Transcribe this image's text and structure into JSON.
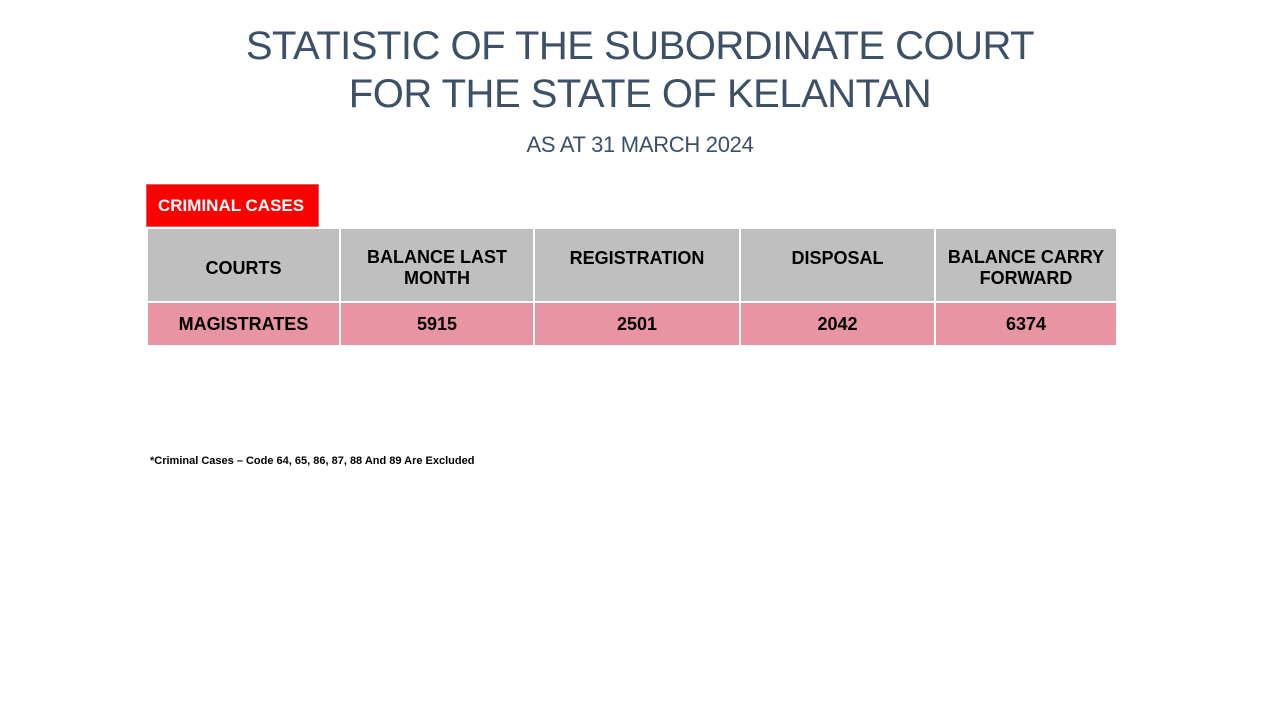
{
  "title": {
    "line1": "STATISTIC OF THE SUBORDINATE COURT",
    "line2": "FOR THE STATE OF KELANTAN",
    "subtitle": "AS AT 31 MARCH 2024"
  },
  "section_label": "CRIMINAL CASES",
  "table": {
    "headers": [
      "COURTS",
      "BALANCE LAST MONTH",
      "REGISTRATION",
      "DISPOSAL",
      "BALANCE CARRY FORWARD"
    ],
    "rows": [
      {
        "court": "MAGISTRATES",
        "balance_last_month": "5915",
        "registration": "2501",
        "disposal": "2042",
        "balance_carry_forward": "6374"
      }
    ]
  },
  "footnote": "*Criminal Cases – Code 64, 65, 86, 87, 88 And 89 Are Excluded",
  "colors": {
    "title_text": "#3c5068",
    "section_label_bg": "#ff0000",
    "header_bg": "#bfbfbf",
    "row_bg": "#e994a3"
  }
}
